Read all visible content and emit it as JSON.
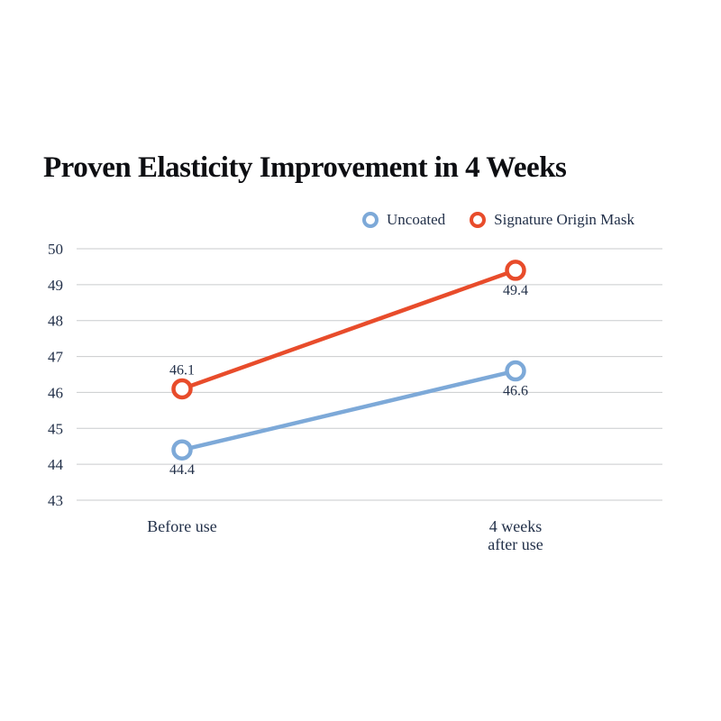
{
  "title": "Proven Elasticity Improvement in 4 Weeks",
  "legend": {
    "items": [
      {
        "label": "Uncoated",
        "color": "#7da9d8"
      },
      {
        "label": "Signature Origin Mask",
        "color": "#e84c2b"
      }
    ]
  },
  "chart_data": {
    "type": "line",
    "title": "Proven Elasticity Improvement in 4 Weeks",
    "categories": [
      [
        "Before use"
      ],
      [
        "4 weeks",
        "after use"
      ]
    ],
    "series": [
      {
        "name": "Uncoated",
        "color": "#7da9d8",
        "values": [
          44.4,
          46.6
        ],
        "point_labels": [
          "44.4",
          "46.6"
        ],
        "point_label_positions": [
          "below",
          "below"
        ]
      },
      {
        "name": "Signature Origin Mask",
        "color": "#e84c2b",
        "values": [
          46.1,
          49.4
        ],
        "point_labels": [
          "46.1",
          "49.4"
        ],
        "point_label_positions": [
          "above",
          "below"
        ]
      }
    ],
    "xlabel": "",
    "ylabel": "",
    "ylim": [
      43,
      50
    ],
    "yticks": [
      50,
      49,
      48,
      47,
      46,
      45,
      44,
      43
    ],
    "grid": true,
    "legend_position": "top-right",
    "marker": "open-circle",
    "axis_text_color": "#223049",
    "gridline_color": "#c9cbcd",
    "background": "#ffffff"
  }
}
